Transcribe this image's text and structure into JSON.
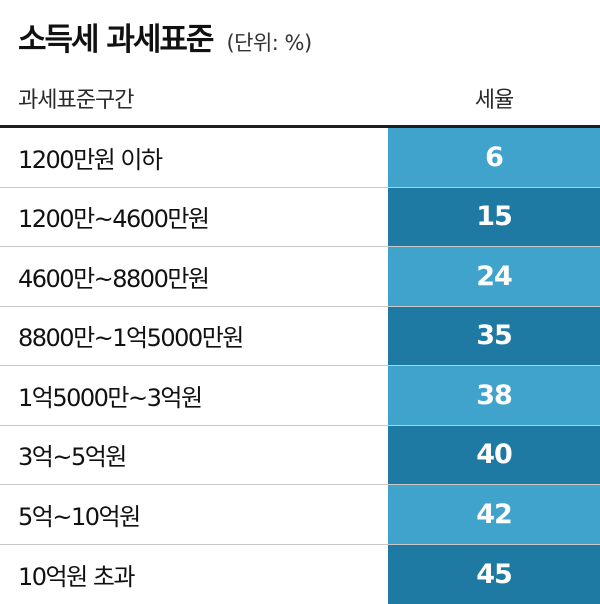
{
  "title": "소득세 과세표준",
  "unit": "(단위: %)",
  "header": {
    "bracket_col": "과세표준구간",
    "rate_col": "세율"
  },
  "colors": {
    "rate_light": "#3fa3cc",
    "rate_dark": "#1f7aa3",
    "divider": "#1f1f1f"
  },
  "chart_data": {
    "type": "table",
    "title": "소득세 과세표준",
    "unit": "(단위: %)",
    "columns": [
      "과세표준구간",
      "세율"
    ],
    "rows": [
      {
        "bracket": "1200만원 이하",
        "rate": "6"
      },
      {
        "bracket": "1200만~4600만원",
        "rate": "15"
      },
      {
        "bracket": "4600만~8800만원",
        "rate": "24"
      },
      {
        "bracket": "8800만~1억5000만원",
        "rate": "35"
      },
      {
        "bracket": "1억5000만~3억원",
        "rate": "38"
      },
      {
        "bracket": "3억~5억원",
        "rate": "40"
      },
      {
        "bracket": "5억~10억원",
        "rate": "42"
      },
      {
        "bracket": "10억원 초과",
        "rate": "45"
      }
    ]
  }
}
